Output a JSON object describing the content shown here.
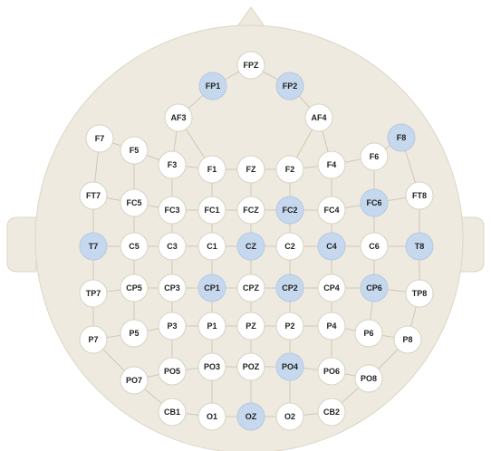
{
  "nodes": [
    {
      "label": "FPZ",
      "highlighted": false
    },
    {
      "label": "FP1",
      "highlighted": true
    },
    {
      "label": "FP2",
      "highlighted": true
    },
    {
      "label": "AF3",
      "highlighted": false
    },
    {
      "label": "AF4",
      "highlighted": false
    },
    {
      "label": "F7",
      "highlighted": false
    },
    {
      "label": "F5",
      "highlighted": false
    },
    {
      "label": "F3",
      "highlighted": false
    },
    {
      "label": "F1",
      "highlighted": false
    },
    {
      "label": "FZ",
      "highlighted": false
    },
    {
      "label": "F2",
      "highlighted": false
    },
    {
      "label": "F4",
      "highlighted": false
    },
    {
      "label": "F6",
      "highlighted": false
    },
    {
      "label": "F8",
      "highlighted": true
    },
    {
      "label": "FT7",
      "highlighted": false
    },
    {
      "label": "FC5",
      "highlighted": false
    },
    {
      "label": "FC3",
      "highlighted": false
    },
    {
      "label": "FC1",
      "highlighted": false
    },
    {
      "label": "FCZ",
      "highlighted": false
    },
    {
      "label": "FC2",
      "highlighted": true
    },
    {
      "label": "FC4",
      "highlighted": false
    },
    {
      "label": "FC6",
      "highlighted": true
    },
    {
      "label": "FT8",
      "highlighted": false
    },
    {
      "label": "T7",
      "highlighted": true
    },
    {
      "label": "C5",
      "highlighted": false
    },
    {
      "label": "C3",
      "highlighted": false
    },
    {
      "label": "C1",
      "highlighted": false
    },
    {
      "label": "CZ",
      "highlighted": true
    },
    {
      "label": "C2",
      "highlighted": false
    },
    {
      "label": "C4",
      "highlighted": true
    },
    {
      "label": "C6",
      "highlighted": false
    },
    {
      "label": "T8",
      "highlighted": true
    },
    {
      "label": "TP7",
      "highlighted": false
    },
    {
      "label": "CP5",
      "highlighted": false
    },
    {
      "label": "CP3",
      "highlighted": false
    },
    {
      "label": "CP1",
      "highlighted": true
    },
    {
      "label": "CPZ",
      "highlighted": false
    },
    {
      "label": "CP2",
      "highlighted": true
    },
    {
      "label": "CP4",
      "highlighted": false
    },
    {
      "label": "CP6",
      "highlighted": true
    },
    {
      "label": "TP8",
      "highlighted": false
    },
    {
      "label": "P7",
      "highlighted": false
    },
    {
      "label": "P5",
      "highlighted": false
    },
    {
      "label": "P3",
      "highlighted": false
    },
    {
      "label": "P1",
      "highlighted": false
    },
    {
      "label": "PZ",
      "highlighted": false
    },
    {
      "label": "P2",
      "highlighted": false
    },
    {
      "label": "P4",
      "highlighted": false
    },
    {
      "label": "P6",
      "highlighted": false
    },
    {
      "label": "P8",
      "highlighted": false
    },
    {
      "label": "PO7",
      "highlighted": false
    },
    {
      "label": "PO5",
      "highlighted": false
    },
    {
      "label": "PO3",
      "highlighted": false
    },
    {
      "label": "POZ",
      "highlighted": false
    },
    {
      "label": "PO4",
      "highlighted": true
    },
    {
      "label": "PO6",
      "highlighted": false
    },
    {
      "label": "PO8",
      "highlighted": false
    },
    {
      "label": "CB1",
      "highlighted": false
    },
    {
      "label": "O1",
      "highlighted": false
    },
    {
      "label": "OZ",
      "highlighted": true
    },
    {
      "label": "O2",
      "highlighted": false
    },
    {
      "label": "CB2",
      "highlighted": false
    }
  ]
}
